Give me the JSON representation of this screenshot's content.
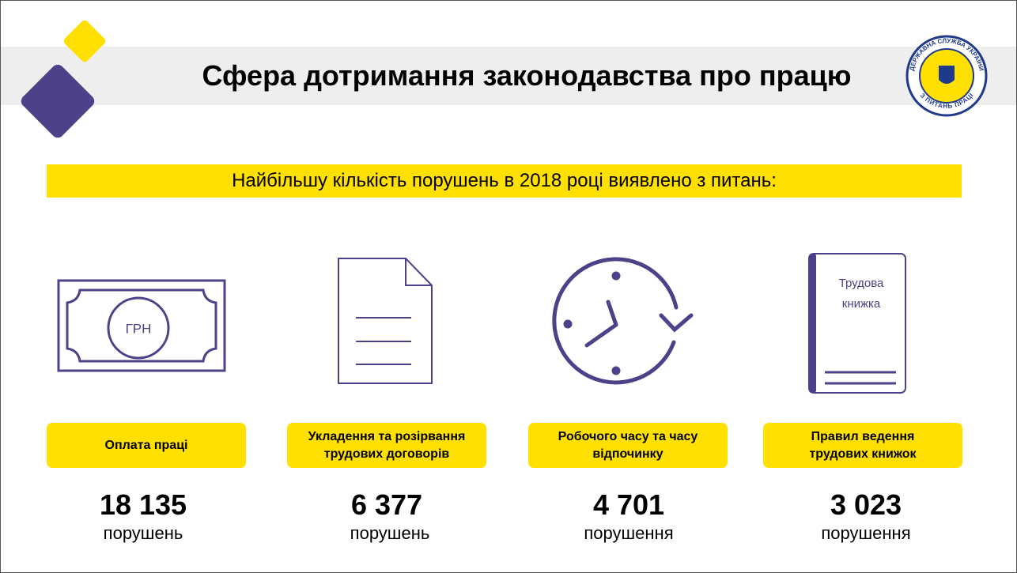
{
  "header": {
    "title": "Сфера дотримання законодавства про працю",
    "logo": {
      "top": "ДЕРЖАВНА СЛУЖБА УКРАЇНИ",
      "bottom": "З ПИТАНЬ ПРАЦІ"
    }
  },
  "subtitle": "Найбільшу кількість порушень в 2018 році виявлено з питань:",
  "items": [
    {
      "icon_text": "ГРН",
      "label": "Оплата праці",
      "value": "18 135",
      "unit": "порушень"
    },
    {
      "label": "Укладення та розірвання трудових договорів",
      "value": "6 377",
      "unit": "порушень"
    },
    {
      "label": "Робочого часу та часу відпочинку",
      "value": "4 701",
      "unit": "порушення"
    },
    {
      "icon_text": [
        "Трудова",
        "книжка"
      ],
      "label": "Правил ведення трудових книжок",
      "value": "3 023",
      "unit": "порушення"
    }
  ]
}
